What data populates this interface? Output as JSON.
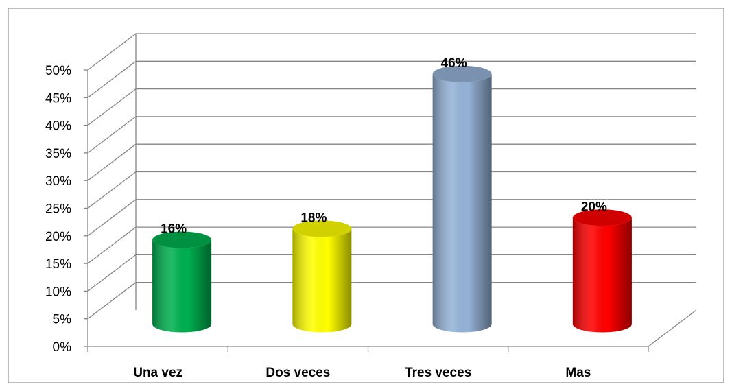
{
  "chart_data": {
    "type": "bar3d",
    "categories": [
      "Una vez",
      "Dos veces",
      "Tres veces",
      "Mas"
    ],
    "values": [
      16,
      18,
      46,
      20
    ],
    "value_labels": [
      "16%",
      "18%",
      "46%",
      "20%"
    ],
    "colors": [
      "#00b050",
      "#ffff00",
      "#95b3d7",
      "#ff0000"
    ],
    "ylim": [
      0,
      50
    ],
    "yticks": [
      {
        "value": 0,
        "label": "0%"
      },
      {
        "value": 5,
        "label": "5%"
      },
      {
        "value": 10,
        "label": "10%"
      },
      {
        "value": 15,
        "label": "15%"
      },
      {
        "value": 20,
        "label": "20%"
      },
      {
        "value": 25,
        "label": "25%"
      },
      {
        "value": 30,
        "label": "30%"
      },
      {
        "value": 35,
        "label": "35%"
      },
      {
        "value": 40,
        "label": "40%"
      },
      {
        "value": 45,
        "label": "45%"
      },
      {
        "value": 50,
        "label": "50%"
      }
    ],
    "grid": true
  }
}
